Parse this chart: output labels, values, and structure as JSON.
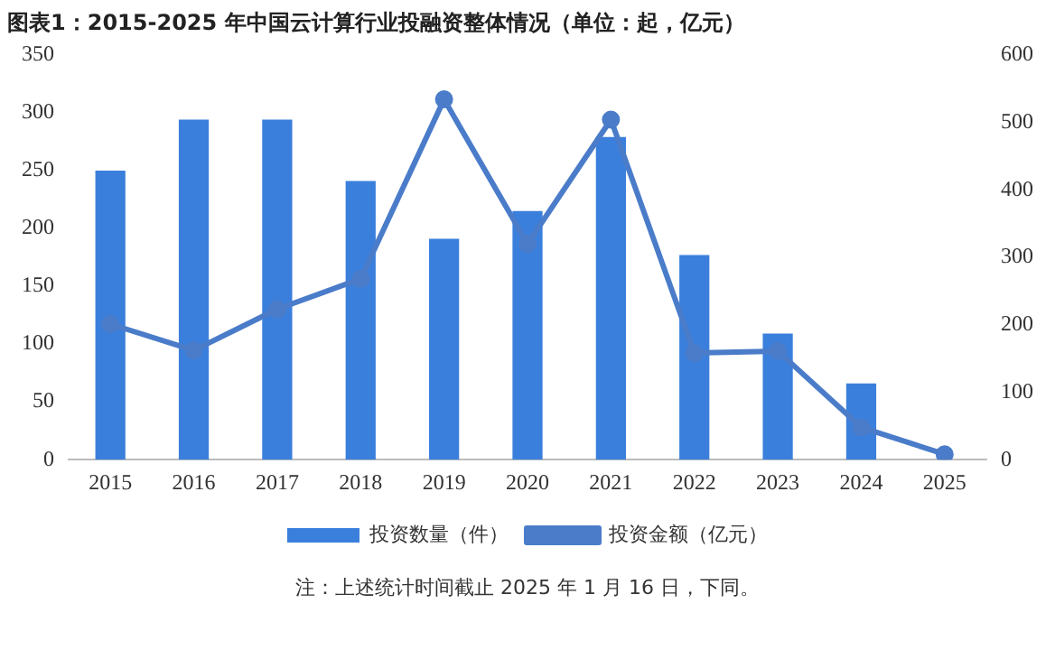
{
  "chart_data": {
    "type": "bar",
    "title": "图表1：2015-2025 年中国云计算行业投融资整体情况（单位：起，亿元）",
    "categories": [
      "2015",
      "2016",
      "2017",
      "2018",
      "2019",
      "2020",
      "2021",
      "2022",
      "2023",
      "2024",
      "2025"
    ],
    "series": [
      {
        "name": "投资数量（件）",
        "color": "#3b7fdc",
        "values": [
          250,
          294,
          294,
          241,
          191,
          215,
          279,
          177,
          109,
          66,
          null
        ]
      },
      {
        "name": "投资金额（亿元）",
        "type": "line",
        "axis": "y2",
        "color": "#4a7cc9",
        "values": [
          201,
          162,
          223,
          268,
          534,
          320,
          504,
          158,
          161,
          48,
          8
        ]
      }
    ],
    "ylim": [
      0,
      350
    ],
    "yticks": [
      0,
      50,
      100,
      150,
      200,
      250,
      300,
      350
    ],
    "y2lim": [
      0,
      600
    ],
    "y2ticks": [
      0,
      100,
      200,
      300,
      400,
      500,
      600
    ],
    "grid": false,
    "legend": "bottom",
    "marker": "circle",
    "line_style": "solid",
    "annotations": [
      "注：上述统计时间截止 2025 年 1 月 16 日，下同。"
    ]
  }
}
